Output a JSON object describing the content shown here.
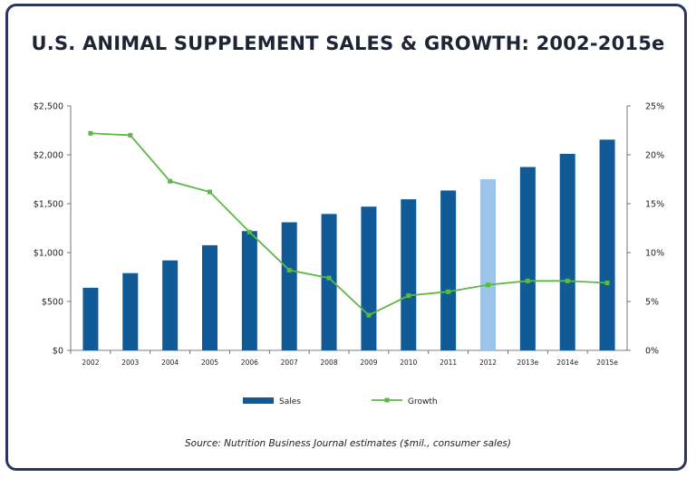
{
  "chart_data": {
    "type": "bar",
    "title": "U.S. ANIMAL SUPPLEMENT SALES & GROWTH: 2002-2015e",
    "source": "Source: Nutrition Business Journal estimates ($mil., consumer sales)",
    "categories": [
      "2002",
      "2003",
      "2004",
      "2005",
      "2006",
      "2007",
      "2008",
      "2009",
      "2010",
      "2011",
      "2012",
      "2013e",
      "2014e",
      "2015e"
    ],
    "series": [
      {
        "name": "Sales",
        "type": "bar",
        "axis": "left",
        "color": "#0f5a97",
        "highlight_color": "#9cc3ea",
        "highlight_index": 10,
        "values": [
          640,
          790,
          920,
          1075,
          1220,
          1310,
          1395,
          1470,
          1545,
          1635,
          1750,
          1875,
          2010,
          2155
        ]
      },
      {
        "name": "Growth",
        "type": "line",
        "axis": "right",
        "color": "#5cb946",
        "values": [
          22.2,
          22.0,
          17.3,
          16.2,
          12.1,
          8.2,
          7.4,
          3.6,
          5.6,
          6.0,
          6.7,
          7.1,
          7.1,
          6.9
        ]
      }
    ],
    "y_left": {
      "min": 0,
      "max": 2500,
      "ticks": [
        "$0",
        "$500",
        "$1,000",
        "$1,500",
        "$2,000",
        "$2,500"
      ]
    },
    "y_right": {
      "min": 0,
      "max": 25,
      "ticks": [
        "0%",
        "5%",
        "10%",
        "15%",
        "20%",
        "25%"
      ]
    },
    "legend_position": "bottom",
    "grid": false
  }
}
